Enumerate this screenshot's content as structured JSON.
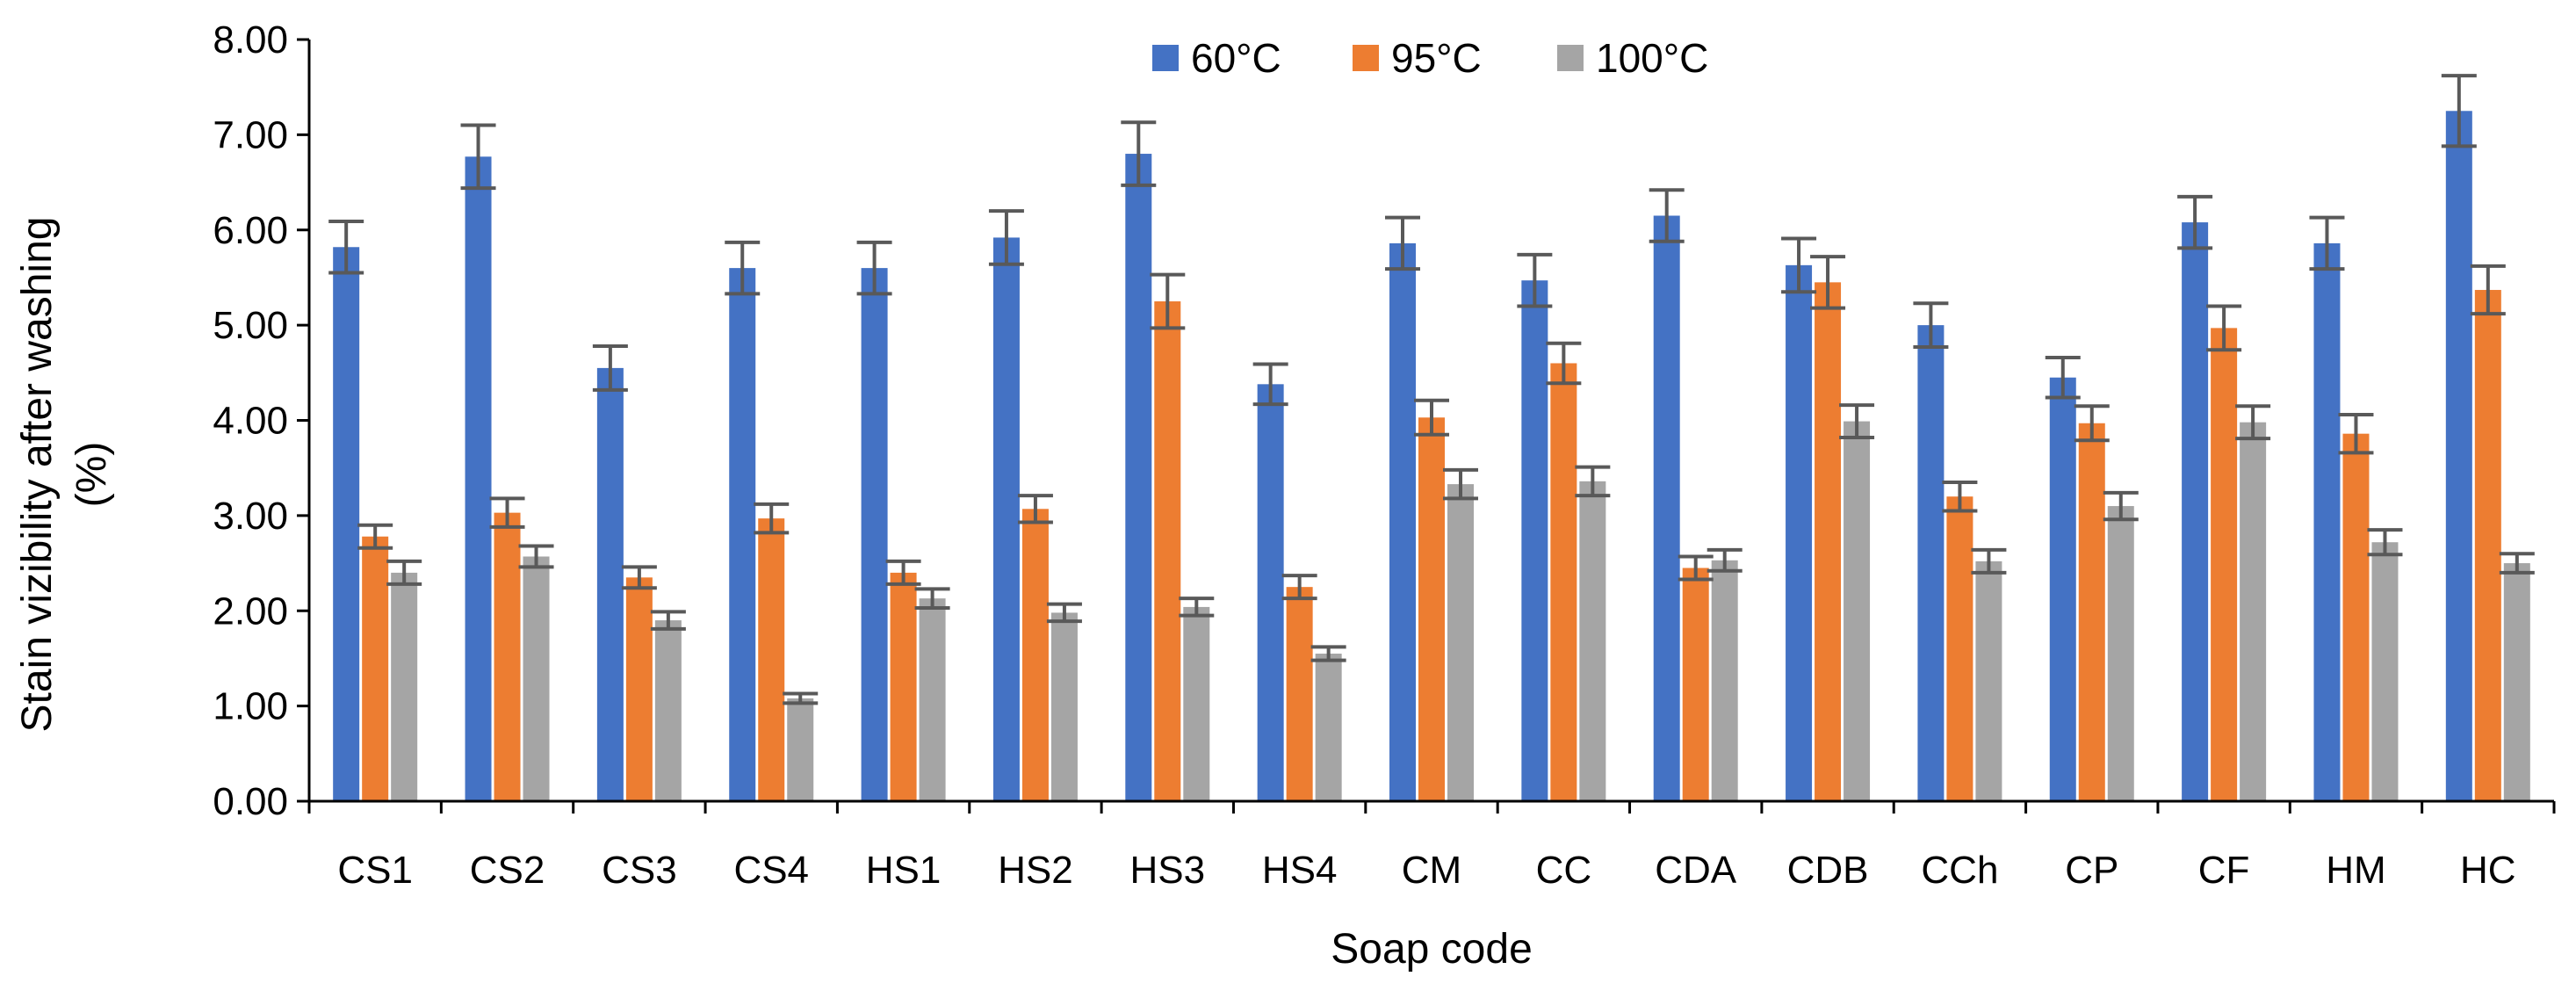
{
  "chart_data": {
    "type": "bar",
    "title": "",
    "xlabel": "Soap code",
    "ylabel_line1": "Stain  vizibility after washing",
    "ylabel_line2": "(%)",
    "ylim": [
      0,
      8
    ],
    "y_ticks": [
      "0.00",
      "1.00",
      "2.00",
      "3.00",
      "4.00",
      "5.00",
      "6.00",
      "7.00",
      "8.00"
    ],
    "legend_position": "top-center",
    "grid": false,
    "error_bars": true,
    "categories": [
      "CS1",
      "CS2",
      "CS3",
      "CS4",
      "HS1",
      "HS2",
      "HS3",
      "HS4",
      "CM",
      "CC",
      "CDA",
      "CDB",
      "CCh",
      "CP",
      "CF",
      "HM",
      "HC"
    ],
    "series": [
      {
        "name": "60°C",
        "color": "#4472C4",
        "values": [
          5.82,
          6.77,
          4.55,
          5.6,
          5.6,
          5.92,
          6.8,
          4.38,
          5.86,
          5.47,
          6.15,
          5.63,
          5.0,
          4.45,
          6.08,
          5.86,
          7.25
        ],
        "errors": [
          0.27,
          0.33,
          0.23,
          0.27,
          0.27,
          0.28,
          0.33,
          0.21,
          0.27,
          0.27,
          0.27,
          0.28,
          0.23,
          0.21,
          0.27,
          0.27,
          0.37
        ]
      },
      {
        "name": "95°C",
        "color": "#ED7D31",
        "values": [
          2.78,
          3.03,
          2.35,
          2.97,
          2.4,
          3.07,
          5.25,
          2.25,
          4.03,
          4.6,
          2.45,
          5.45,
          3.2,
          3.97,
          4.97,
          3.86,
          5.37
        ],
        "errors": [
          0.12,
          0.15,
          0.11,
          0.15,
          0.12,
          0.14,
          0.28,
          0.12,
          0.18,
          0.21,
          0.12,
          0.27,
          0.15,
          0.18,
          0.23,
          0.2,
          0.25
        ]
      },
      {
        "name": "100°C",
        "color": "#A5A5A5",
        "values": [
          2.4,
          2.57,
          1.9,
          1.08,
          2.13,
          1.98,
          2.04,
          1.55,
          3.33,
          3.36,
          2.53,
          3.99,
          2.52,
          3.1,
          3.98,
          2.72,
          2.5
        ],
        "errors": [
          0.12,
          0.11,
          0.09,
          0.05,
          0.1,
          0.09,
          0.09,
          0.07,
          0.15,
          0.15,
          0.11,
          0.17,
          0.12,
          0.14,
          0.17,
          0.13,
          0.1
        ]
      }
    ]
  }
}
